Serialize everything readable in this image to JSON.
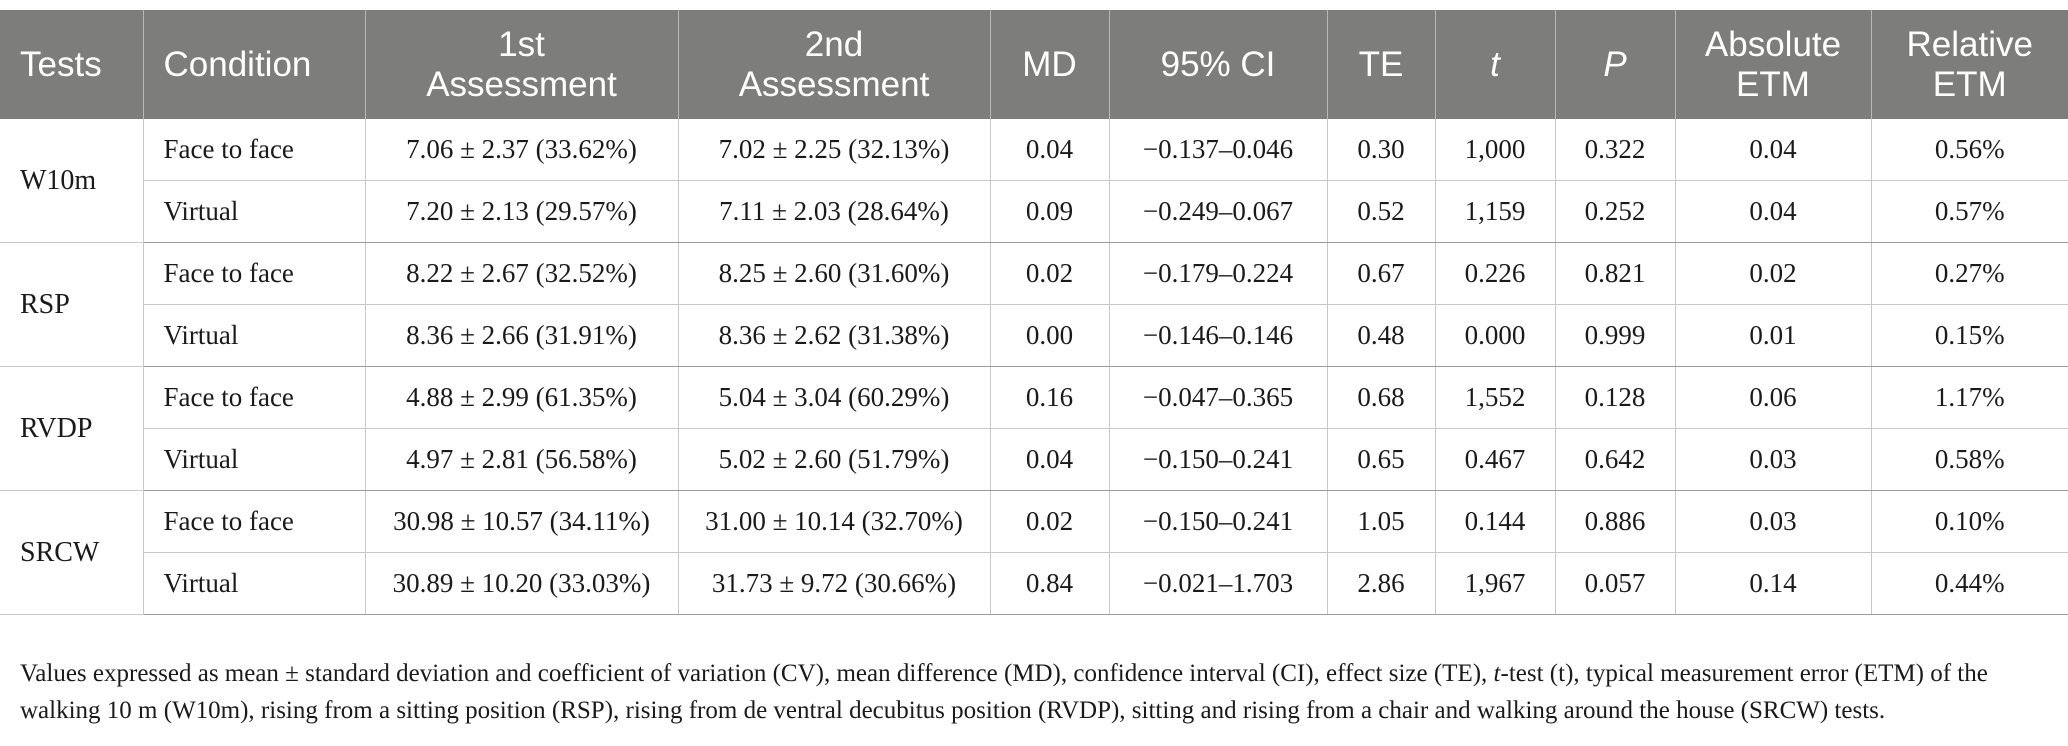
{
  "table": {
    "headers": {
      "tests": "Tests",
      "condition": "Condition",
      "first_line1": "1st",
      "first_line2": "Assessment",
      "second_line1": "2nd",
      "second_line2": "Assessment",
      "md": "MD",
      "ci": "95% CI",
      "te": "TE",
      "t": "t",
      "p": "P",
      "abs_line1": "Absolute",
      "abs_line2": "ETM",
      "rel_line1": "Relative",
      "rel_line2": "ETM"
    },
    "groups": [
      {
        "test": "W10m",
        "rows": [
          {
            "condition": "Face to face",
            "first": "7.06 ± 2.37 (33.62%)",
            "second": "7.02 ± 2.25 (32.13%)",
            "md": "0.04",
            "ci": "−0.137–0.046",
            "te": "0.30",
            "t": "1,000",
            "p": "0.322",
            "abs": "0.04",
            "rel": "0.56%"
          },
          {
            "condition": "Virtual",
            "first": "7.20 ± 2.13 (29.57%)",
            "second": "7.11 ± 2.03 (28.64%)",
            "md": "0.09",
            "ci": "−0.249–0.067",
            "te": "0.52",
            "t": "1,159",
            "p": "0.252",
            "abs": "0.04",
            "rel": "0.57%"
          }
        ]
      },
      {
        "test": "RSP",
        "rows": [
          {
            "condition": "Face to face",
            "first": "8.22 ± 2.67 (32.52%)",
            "second": "8.25 ± 2.60 (31.60%)",
            "md": "0.02",
            "ci": "−0.179–0.224",
            "te": "0.67",
            "t": "0.226",
            "p": "0.821",
            "abs": "0.02",
            "rel": "0.27%"
          },
          {
            "condition": "Virtual",
            "first": "8.36 ± 2.66 (31.91%)",
            "second": "8.36 ± 2.62 (31.38%)",
            "md": "0.00",
            "ci": "−0.146–0.146",
            "te": "0.48",
            "t": "0.000",
            "p": "0.999",
            "abs": "0.01",
            "rel": "0.15%"
          }
        ]
      },
      {
        "test": "RVDP",
        "rows": [
          {
            "condition": "Face to face",
            "first": "4.88 ± 2.99 (61.35%)",
            "second": "5.04 ± 3.04 (60.29%)",
            "md": "0.16",
            "ci": "−0.047–0.365",
            "te": "0.68",
            "t": "1,552",
            "p": "0.128",
            "abs": "0.06",
            "rel": "1.17%"
          },
          {
            "condition": "Virtual",
            "first": "4.97 ± 2.81 (56.58%)",
            "second": "5.02 ± 2.60 (51.79%)",
            "md": "0.04",
            "ci": "−0.150–0.241",
            "te": "0.65",
            "t": "0.467",
            "p": "0.642",
            "abs": "0.03",
            "rel": "0.58%"
          }
        ]
      },
      {
        "test": "SRCW",
        "rows": [
          {
            "condition": "Face to face",
            "first": "30.98 ± 10.57 (34.11%)",
            "second": "31.00 ± 10.14 (32.70%)",
            "md": "0.02",
            "ci": "−0.150–0.241",
            "te": "1.05",
            "t": "0.144",
            "p": "0.886",
            "abs": "0.03",
            "rel": "0.10%"
          },
          {
            "condition": "Virtual",
            "first": "30.89 ± 10.20 (33.03%)",
            "second": "31.73 ± 9.72 (30.66%)",
            "md": "0.84",
            "ci": "−0.021–1.703",
            "te": "2.86",
            "t": "1,967",
            "p": "0.057",
            "abs": "0.14",
            "rel": "0.44%"
          }
        ]
      }
    ]
  },
  "footnote": {
    "part1": "Values expressed as mean ± standard deviation and coefficient of variation (CV), mean difference (MD), confidence interval (CI), effect size (TE), ",
    "t_italic": "t",
    "part2": "-test (t), typical measurement error (ETM) of the walking 10 m (W10m), rising from a sitting position (RSP), rising from de ventral decubitus position (RVDP), sitting and rising from a chair and walking around the house (SRCW) tests."
  }
}
